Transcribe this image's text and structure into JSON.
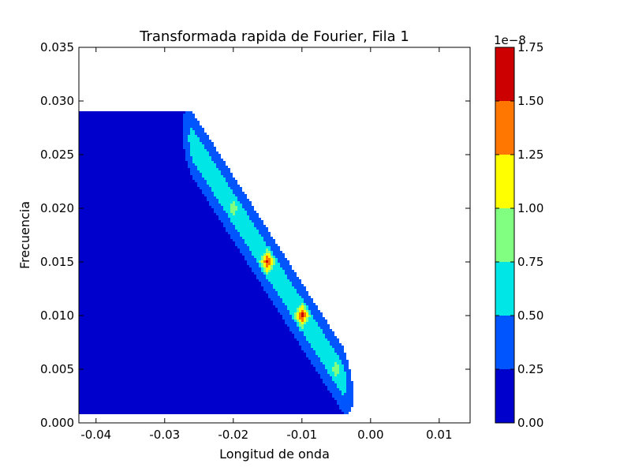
{
  "chart_data": {
    "type": "contour",
    "title": "Transformada rapida de Fourier, Fila 1",
    "xlabel": "Longitud de onda",
    "ylabel": "Frecuencia",
    "xlim": [
      -0.0425,
      0.0145
    ],
    "ylim": [
      0.0,
      0.035
    ],
    "xticks": [
      "-0.04",
      "-0.03",
      "-0.02",
      "-0.01",
      "0.00",
      "0.01"
    ],
    "xtick_values": [
      -0.04,
      -0.03,
      -0.02,
      -0.01,
      0.0,
      0.01
    ],
    "yticks": [
      "0.000",
      "0.005",
      "0.010",
      "0.015",
      "0.020",
      "0.025",
      "0.030",
      "0.035"
    ],
    "ytick_values": [
      0.0,
      0.005,
      0.01,
      0.015,
      0.02,
      0.025,
      0.03,
      0.035
    ],
    "colorbar": {
      "levels": [
        0.0,
        0.25,
        0.5,
        0.75,
        1.0,
        1.25,
        1.5,
        1.75
      ],
      "tick_labels": [
        "0.00",
        "0.25",
        "0.50",
        "0.75",
        "1.00",
        "1.25",
        "1.50",
        "1.75"
      ],
      "offset_text": "1e−8",
      "colors": [
        "#0000cc",
        "#0055ff",
        "#00e6e6",
        "#80ff80",
        "#ffff00",
        "#ff7700",
        "#cc0000"
      ]
    },
    "peaks": [
      {
        "x": -0.025,
        "y": 0.025,
        "value": 0.6
      },
      {
        "x": -0.02,
        "y": 0.02,
        "value": 1.05
      },
      {
        "x": -0.015,
        "y": 0.015,
        "value": 1.7
      },
      {
        "x": -0.01,
        "y": 0.01,
        "value": 1.7
      },
      {
        "x": -0.005,
        "y": 0.005,
        "value": 1.05
      },
      {
        "x": -0.03,
        "y": 0.03,
        "value": 0.26
      }
    ],
    "background_value": 0.05,
    "grid": false
  }
}
